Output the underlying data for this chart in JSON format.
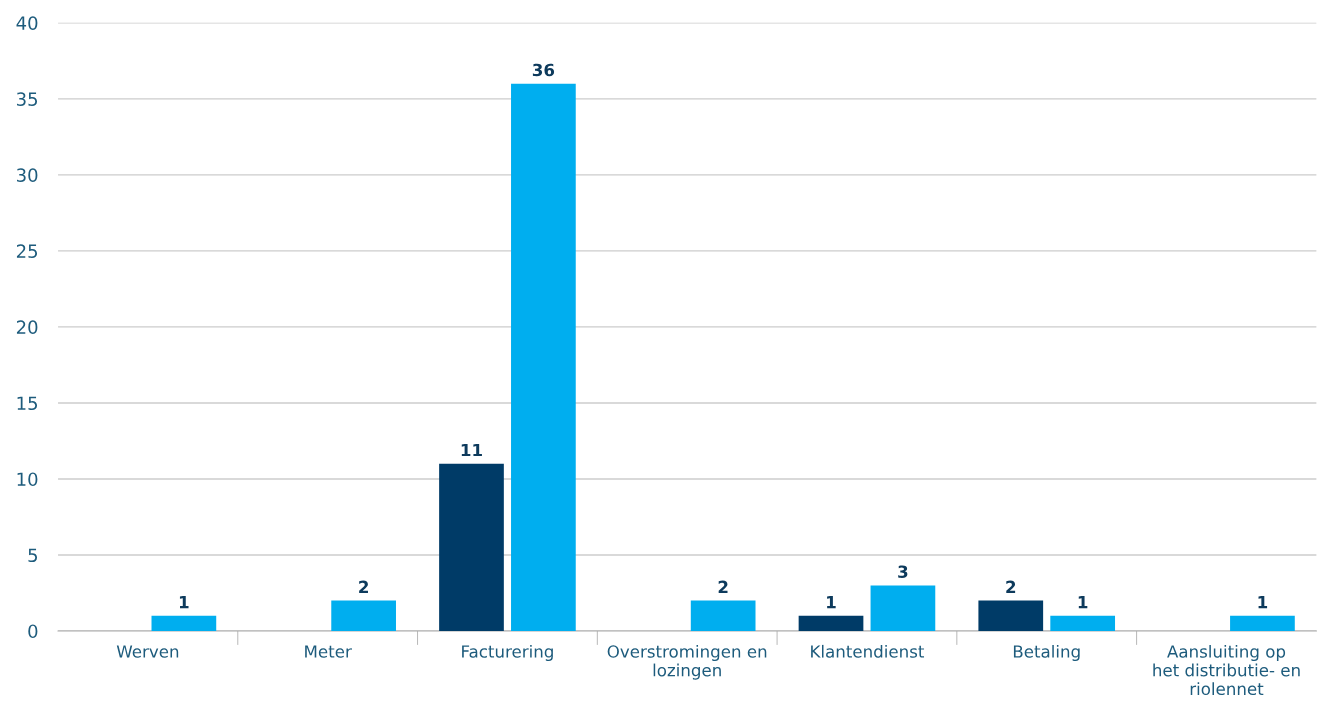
{
  "chart_data": {
    "type": "bar",
    "categories": [
      "Werven",
      "Meter",
      "Facturering",
      "Overstromingen en\nlozingen",
      "Klantendienst",
      "Betaling",
      "Aansluiting op\nhet distributie- en\nriolennet"
    ],
    "series": [
      {
        "color": "#003b67",
        "values": [
          null,
          null,
          11,
          null,
          1,
          2,
          null
        ]
      },
      {
        "color": "#00aeef",
        "values": [
          1,
          2,
          36,
          2,
          3,
          1,
          1
        ]
      }
    ],
    "ylim": [
      0,
      40
    ],
    "yticks": [
      0,
      5,
      10,
      15,
      20,
      25,
      30,
      35,
      40
    ],
    "grid": "y",
    "data_labels": true
  }
}
